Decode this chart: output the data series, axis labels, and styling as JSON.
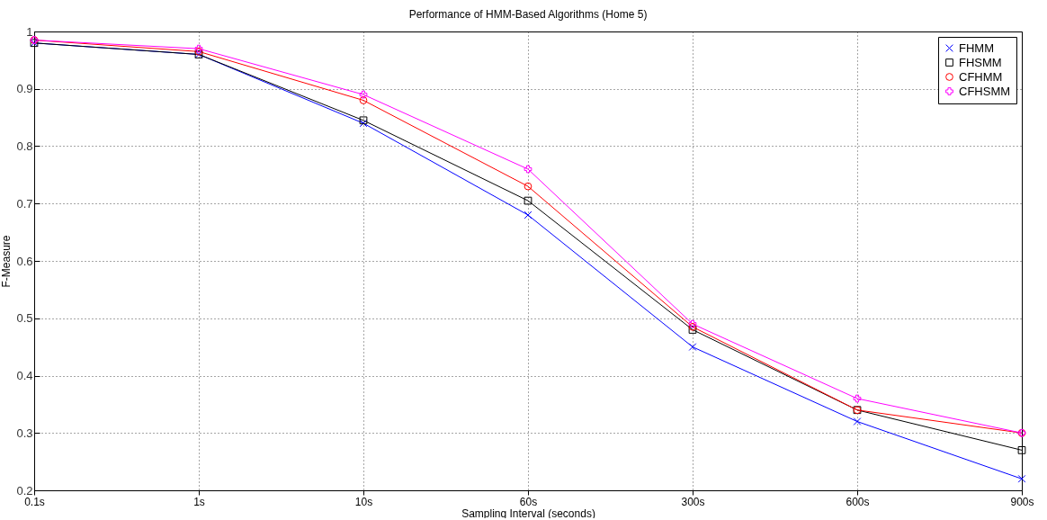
{
  "chart_data": {
    "type": "line",
    "title": "Performance of HMM-Based Algorithms (Home 5)",
    "xlabel": "Sampling Interval (seconds)",
    "ylabel": "F-Measure",
    "categories": [
      "0.1s",
      "1s",
      "10s",
      "60s",
      "300s",
      "600s",
      "900s"
    ],
    "ylim": [
      0.2,
      1
    ],
    "yticks": [
      0.2,
      0.3,
      0.4,
      0.5,
      0.6,
      0.7,
      0.8,
      0.9,
      1
    ],
    "grid": true,
    "legend": "top right",
    "line_style": "solid",
    "series": [
      {
        "name": "FHMM",
        "color": "#0000ff",
        "marker": "x",
        "values": [
          0.98,
          0.96,
          0.84,
          0.68,
          0.45,
          0.32,
          0.22
        ]
      },
      {
        "name": "FHSMM",
        "color": "#000000",
        "marker": "square",
        "values": [
          0.98,
          0.96,
          0.845,
          0.705,
          0.48,
          0.34,
          0.27
        ]
      },
      {
        "name": "CFHMM",
        "color": "#ff0000",
        "marker": "circle",
        "values": [
          0.985,
          0.965,
          0.88,
          0.73,
          0.485,
          0.34,
          0.3
        ]
      },
      {
        "name": "CFHSMM",
        "color": "#ff00ff",
        "marker": "cross",
        "values": [
          0.985,
          0.97,
          0.89,
          0.76,
          0.49,
          0.36,
          0.3
        ]
      }
    ]
  }
}
